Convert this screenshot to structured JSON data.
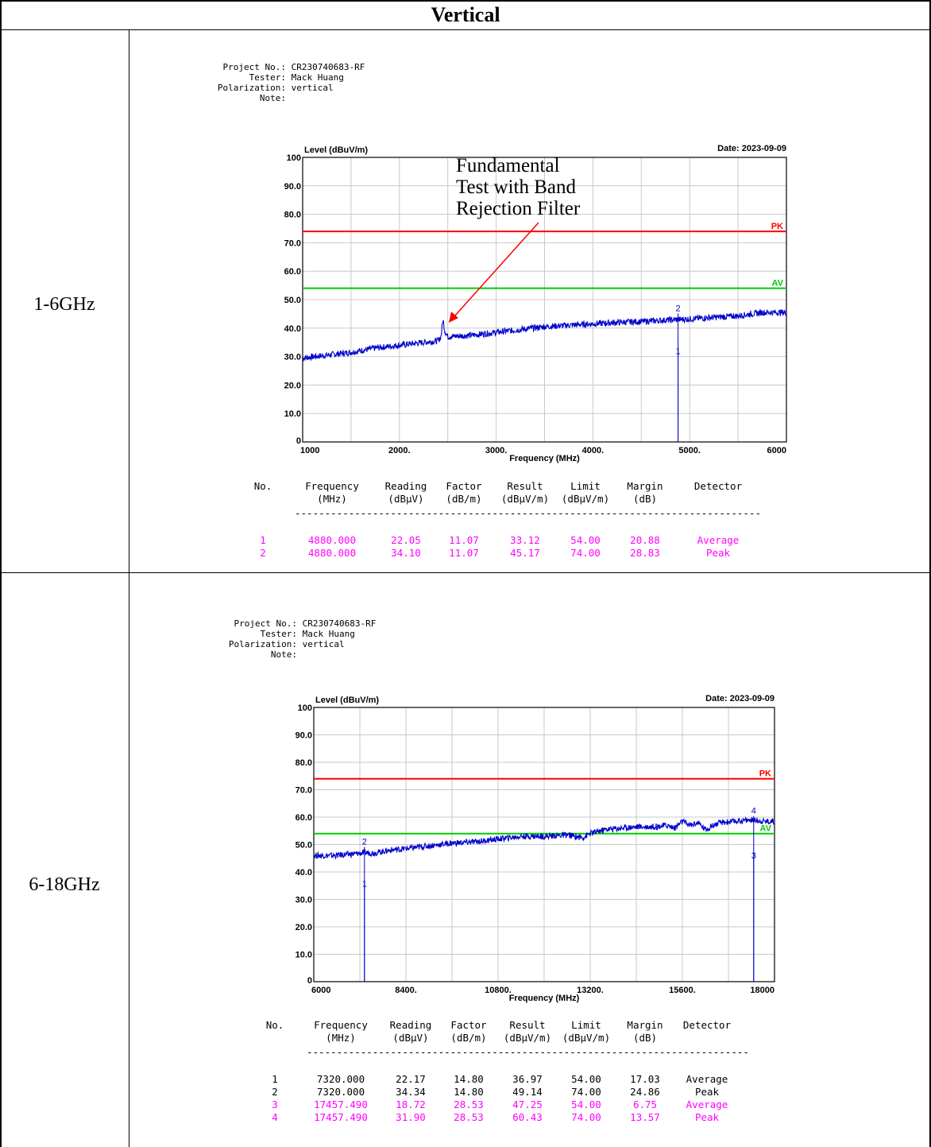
{
  "header": "Vertical",
  "rows": [
    {
      "label": "1-6GHz"
    },
    {
      "label": "6-18GHz"
    }
  ],
  "charts": [
    {
      "meta": [
        {
          "k": "Project No.:",
          "v": "CR230740683-RF"
        },
        {
          "k": "Tester:",
          "v": "Mack Huang"
        },
        {
          "k": "Polarization:",
          "v": "vertical"
        },
        {
          "k": "Note:",
          "v": ""
        }
      ],
      "date": "Date: 2023-09-09",
      "annotation": "Fundamental\nTest with Band\nRejection Filter",
      "table_headers": [
        [
          "No.",
          ""
        ],
        [
          "Frequency",
          "(MHz)"
        ],
        [
          "Reading",
          "(dBμV)"
        ],
        [
          "Factor",
          "(dB/m)"
        ],
        [
          "Result",
          "(dBμV/m)"
        ],
        [
          "Limit",
          "(dBμV/m)"
        ],
        [
          "Margin",
          "(dB)"
        ],
        [
          "Detector",
          ""
        ]
      ],
      "table_rows": [
        {
          "no": "1",
          "frequency": "4880.000",
          "reading": "22.05",
          "factor": "11.07",
          "result": "33.12",
          "limit": "54.00",
          "margin": "20.88",
          "detector": "Average",
          "color": "#ff00ff"
        },
        {
          "no": "2",
          "frequency": "4880.000",
          "reading": "34.10",
          "factor": "11.07",
          "result": "45.17",
          "limit": "74.00",
          "margin": "28.83",
          "detector": "Peak",
          "color": "#ff00ff"
        }
      ]
    },
    {
      "meta": [
        {
          "k": "Project No.:",
          "v": "CR230740683-RF"
        },
        {
          "k": "Tester:",
          "v": "Mack Huang"
        },
        {
          "k": "Polarization:",
          "v": "vertical"
        },
        {
          "k": "Note:",
          "v": ""
        }
      ],
      "date": "Date: 2023-09-09",
      "annotation": "",
      "table_headers": [
        [
          "No.",
          ""
        ],
        [
          "Frequency",
          "(MHz)"
        ],
        [
          "Reading",
          "(dBμV)"
        ],
        [
          "Factor",
          "(dB/m)"
        ],
        [
          "Result",
          "(dBμV/m)"
        ],
        [
          "Limit",
          "(dBμV/m)"
        ],
        [
          "Margin",
          "(dB)"
        ],
        [
          "Detector",
          ""
        ]
      ],
      "table_rows": [
        {
          "no": "1",
          "frequency": "7320.000",
          "reading": "22.17",
          "factor": "14.80",
          "result": "36.97",
          "limit": "54.00",
          "margin": "17.03",
          "detector": "Average",
          "color": "#000000"
        },
        {
          "no": "2",
          "frequency": "7320.000",
          "reading": "34.34",
          "factor": "14.80",
          "result": "49.14",
          "limit": "74.00",
          "margin": "24.86",
          "detector": "Peak",
          "color": "#000000"
        },
        {
          "no": "3",
          "frequency": "17457.490",
          "reading": "18.72",
          "factor": "28.53",
          "result": "47.25",
          "limit": "54.00",
          "margin": "6.75",
          "detector": "Average",
          "color": "#ff00ff"
        },
        {
          "no": "4",
          "frequency": "17457.490",
          "reading": "31.90",
          "factor": "28.53",
          "result": "60.43",
          "limit": "74.00",
          "margin": "13.57",
          "detector": "Peak",
          "color": "#ff00ff"
        }
      ]
    }
  ],
  "chart_data": [
    {
      "type": "line",
      "ylabel": "Level (dBuV/m)",
      "xlabel": "Frequency (MHz)",
      "xlim": [
        1000,
        6000
      ],
      "ylim": [
        0,
        100
      ],
      "x_ticks": [
        "1000",
        "2000.",
        "3000.",
        "4000.",
        "5000.",
        "6000"
      ],
      "x_tick_values": [
        1000,
        2000,
        3000,
        4000,
        5000,
        6000
      ],
      "y_ticks": [
        "0",
        "10.0",
        "20.0",
        "30.0",
        "40.0",
        "50.0",
        "60.0",
        "70.0",
        "80.0",
        "90.0",
        "100"
      ],
      "grid": true,
      "limit_lines": [
        {
          "name": "PK",
          "value": 74,
          "color": "#ff0000"
        },
        {
          "name": "AV",
          "value": 54,
          "color": "#00cc00"
        }
      ],
      "series": [
        {
          "color": "#0000cc",
          "x": [
            1000,
            1250,
            1500,
            1750,
            2000,
            2250,
            2400,
            2430,
            2450,
            2470,
            2500,
            2750,
            3000,
            3250,
            3500,
            3750,
            4000,
            4250,
            4500,
            4750,
            4880,
            5000,
            5250,
            5500,
            5750,
            6000
          ],
          "y": [
            29.5,
            30.5,
            31.5,
            33,
            34,
            35,
            35.5,
            37,
            43,
            39,
            37,
            37.5,
            38.5,
            39.5,
            40.5,
            41,
            41.5,
            42,
            42.3,
            42.8,
            43,
            43.2,
            43.8,
            44.3,
            45.5,
            45.5
          ]
        }
      ],
      "markers": [
        {
          "label": "1",
          "x": 4880,
          "y": 33.12
        },
        {
          "label": "2",
          "x": 4880,
          "y": 45.17
        }
      ]
    },
    {
      "type": "line",
      "ylabel": "Level (dBuV/m)",
      "xlabel": "Frequency (MHz)",
      "xlim": [
        6000,
        18000
      ],
      "ylim": [
        0,
        100
      ],
      "x_ticks": [
        "6000",
        "8400.",
        "10800.",
        "13200.",
        "15600.",
        "18000"
      ],
      "x_tick_values": [
        6000,
        8400,
        10800,
        13200,
        15600,
        18000
      ],
      "y_ticks": [
        "0",
        "10.0",
        "20.0",
        "30.0",
        "40.0",
        "50.0",
        "60.0",
        "70.0",
        "80.0",
        "90.0",
        "100"
      ],
      "grid": true,
      "limit_lines": [
        {
          "name": "PK",
          "value": 74,
          "color": "#ff0000"
        },
        {
          "name": "AV",
          "value": 54,
          "color": "#00cc00"
        }
      ],
      "series": [
        {
          "color": "#0000cc",
          "x": [
            6000,
            6500,
            7000,
            7320,
            7600,
            8000,
            8400,
            9000,
            9600,
            10200,
            10800,
            11400,
            12000,
            12600,
            13000,
            13200,
            13600,
            14000,
            14400,
            14800,
            15200,
            15400,
            15600,
            15800,
            16000,
            16200,
            16400,
            16600,
            17000,
            17400,
            17700,
            18000
          ],
          "y": [
            46,
            46,
            46.5,
            47,
            47,
            48,
            48.5,
            49.5,
            50.5,
            51,
            52,
            53,
            53,
            53.5,
            52.5,
            54,
            55.5,
            56,
            56.5,
            56.5,
            57,
            56,
            58.5,
            57,
            58,
            55.5,
            57,
            58,
            58.5,
            59,
            58.5,
            58.5
          ]
        }
      ],
      "markers": [
        {
          "label": "1",
          "x": 7320,
          "y": 36.97
        },
        {
          "label": "2",
          "x": 7320,
          "y": 49.14
        },
        {
          "label": "3",
          "x": 17457.49,
          "y": 47.25
        },
        {
          "label": "4",
          "x": 17457.49,
          "y": 60.43
        }
      ]
    }
  ]
}
